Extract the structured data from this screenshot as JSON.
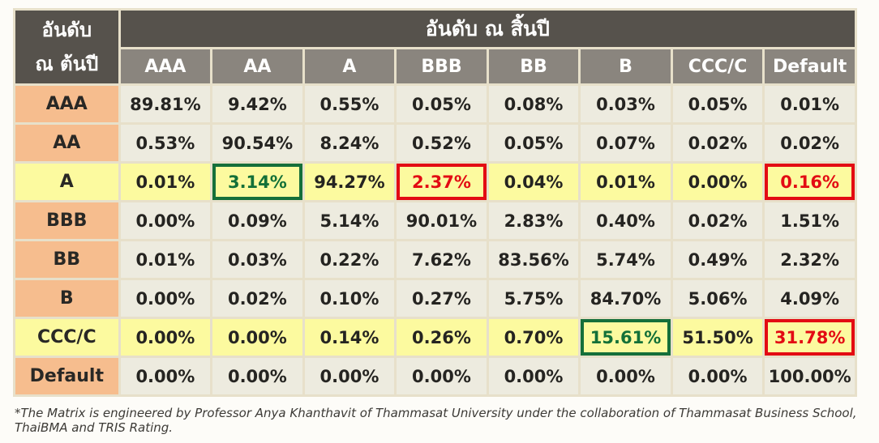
{
  "chart_data": {
    "type": "table",
    "title_corner_line1": "อันดับ",
    "title_corner_line2": "ณ ต้นปี",
    "span_header": "อันดับ ณ สิ้นปี",
    "column_headers": [
      "AAA",
      "AA",
      "A",
      "BBB",
      "BB",
      "B",
      "CCC/C",
      "Default"
    ],
    "rows": [
      {
        "label": "AAA",
        "highlight": false,
        "values": [
          "89.81%",
          "9.42%",
          "0.55%",
          "0.05%",
          "0.08%",
          "0.03%",
          "0.05%",
          "0.01%"
        ],
        "marks": {}
      },
      {
        "label": "AA",
        "highlight": false,
        "values": [
          "0.53%",
          "90.54%",
          "8.24%",
          "0.52%",
          "0.05%",
          "0.07%",
          "0.02%",
          "0.02%"
        ],
        "marks": {}
      },
      {
        "label": "A",
        "highlight": true,
        "values": [
          "0.01%",
          "3.14%",
          "94.27%",
          "2.37%",
          "0.04%",
          "0.01%",
          "0.00%",
          "0.16%"
        ],
        "marks": {
          "1": "green",
          "3": "red",
          "7": "red"
        }
      },
      {
        "label": "BBB",
        "highlight": false,
        "values": [
          "0.00%",
          "0.09%",
          "5.14%",
          "90.01%",
          "2.83%",
          "0.40%",
          "0.02%",
          "1.51%"
        ],
        "marks": {}
      },
      {
        "label": "BB",
        "highlight": false,
        "values": [
          "0.01%",
          "0.03%",
          "0.22%",
          "7.62%",
          "83.56%",
          "5.74%",
          "0.49%",
          "2.32%"
        ],
        "marks": {}
      },
      {
        "label": "B",
        "highlight": false,
        "values": [
          "0.00%",
          "0.02%",
          "0.10%",
          "0.27%",
          "5.75%",
          "84.70%",
          "5.06%",
          "4.09%"
        ],
        "marks": {}
      },
      {
        "label": "CCC/C",
        "highlight": true,
        "values": [
          "0.00%",
          "0.00%",
          "0.14%",
          "0.26%",
          "0.70%",
          "15.61%",
          "51.50%",
          "31.78%"
        ],
        "marks": {
          "5": "green",
          "7": "red"
        }
      },
      {
        "label": "Default",
        "highlight": false,
        "values": [
          "0.00%",
          "0.00%",
          "0.00%",
          "0.00%",
          "0.00%",
          "0.00%",
          "0.00%",
          "100.00%"
        ],
        "marks": {}
      }
    ]
  },
  "footnote": "*The Matrix is engineered by Professor Anya Khanthavit of Thammasat University under the collaboration of Thammasat Business School, ThaiBMA and TRIS Rating.",
  "colors": {
    "header_dark": "#56524c",
    "header_gray": "#8a857e",
    "row_header_peach": "#f6bd8e",
    "cell_beige": "#edebdf",
    "highlight_yellow": "#fcfa9f",
    "grid_cream": "#e7e0ca",
    "mark_green": "#156f3a",
    "mark_red": "#e30b13"
  }
}
